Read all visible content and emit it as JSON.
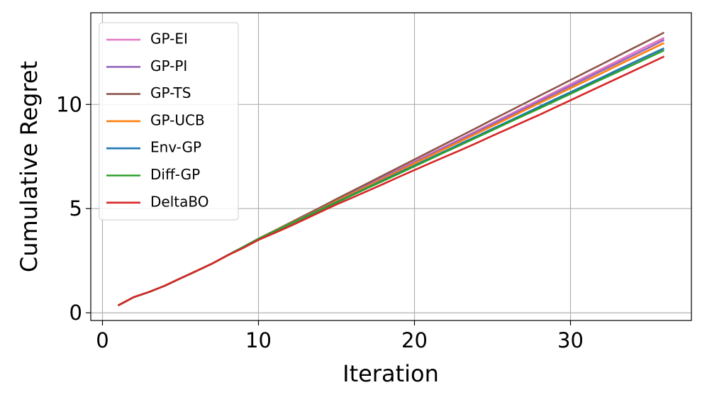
{
  "chart_data": {
    "type": "line",
    "xlabel": "Iteration",
    "ylabel": "Cumulative Regret",
    "x": [
      1,
      2,
      3,
      4,
      5,
      6,
      7,
      8,
      9,
      10,
      11,
      12,
      13,
      14,
      15,
      16,
      17,
      18,
      19,
      20,
      21,
      22,
      23,
      24,
      25,
      26,
      27,
      28,
      29,
      30,
      31,
      32,
      33,
      34,
      35,
      36
    ],
    "xlim": [
      -0.75,
      37.75
    ],
    "xticks": [
      0,
      10,
      20,
      30
    ],
    "ylim": [
      -0.37,
      14.4
    ],
    "yticks": [
      0,
      5,
      10
    ],
    "grid": true,
    "legend": "upper left",
    "series": [
      {
        "name": "GP-EI",
        "color": "#e377c2",
        "values": [
          0.35,
          0.75,
          1.0,
          1.3,
          1.65,
          2.0,
          2.35,
          2.75,
          3.15,
          3.55,
          3.92,
          4.29,
          4.66,
          5.03,
          5.4,
          5.77,
          6.14,
          6.52,
          6.89,
          7.26,
          7.63,
          8.0,
          8.37,
          8.74,
          9.11,
          9.48,
          9.85,
          10.22,
          10.6,
          10.97,
          11.34,
          11.71,
          12.08,
          12.46,
          12.83,
          13.2
        ]
      },
      {
        "name": "GP-PI",
        "color": "#9467bd",
        "values": [
          0.35,
          0.75,
          1.0,
          1.3,
          1.65,
          2.0,
          2.35,
          2.75,
          3.15,
          3.55,
          3.92,
          4.28,
          4.65,
          5.02,
          5.38,
          5.75,
          6.12,
          6.48,
          6.85,
          7.22,
          7.58,
          7.95,
          8.32,
          8.68,
          9.05,
          9.42,
          9.78,
          10.15,
          10.52,
          10.88,
          11.25,
          11.62,
          11.98,
          12.35,
          12.72,
          13.1
        ]
      },
      {
        "name": "GP-TS",
        "color": "#8c564b",
        "values": [
          0.35,
          0.75,
          1.0,
          1.3,
          1.65,
          2.0,
          2.35,
          2.75,
          3.15,
          3.55,
          3.93,
          4.31,
          4.69,
          5.07,
          5.46,
          5.84,
          6.22,
          6.6,
          6.98,
          7.36,
          7.74,
          8.12,
          8.5,
          8.88,
          9.27,
          9.65,
          10.03,
          10.41,
          10.79,
          11.17,
          11.55,
          11.93,
          12.31,
          12.69,
          13.07,
          13.45
        ]
      },
      {
        "name": "GP-UCB",
        "color": "#ff7f0e",
        "values": [
          0.35,
          0.75,
          1.0,
          1.3,
          1.65,
          2.0,
          2.35,
          2.75,
          3.15,
          3.55,
          3.91,
          4.27,
          4.63,
          4.99,
          5.36,
          5.72,
          6.08,
          6.44,
          6.8,
          7.17,
          7.53,
          7.89,
          8.25,
          8.61,
          8.97,
          9.33,
          9.7,
          10.06,
          10.42,
          10.78,
          11.14,
          11.5,
          11.87,
          12.23,
          12.59,
          12.95
        ]
      },
      {
        "name": "Env-GP",
        "color": "#1f77b4",
        "values": [
          0.35,
          0.75,
          1.0,
          1.3,
          1.65,
          2.0,
          2.35,
          2.75,
          3.15,
          3.55,
          3.9,
          4.25,
          4.61,
          4.96,
          5.31,
          5.66,
          6.01,
          6.37,
          6.72,
          7.07,
          7.42,
          7.77,
          8.13,
          8.48,
          8.83,
          9.18,
          9.53,
          9.89,
          10.24,
          10.59,
          10.94,
          11.29,
          11.65,
          12.0,
          12.35,
          12.7
        ]
      },
      {
        "name": "Diff-GP",
        "color": "#2ca02c",
        "values": [
          0.35,
          0.75,
          1.0,
          1.3,
          1.65,
          2.0,
          2.35,
          2.75,
          3.15,
          3.55,
          3.9,
          4.25,
          4.59,
          4.94,
          5.29,
          5.64,
          5.99,
          6.33,
          6.68,
          7.03,
          7.38,
          7.73,
          8.07,
          8.42,
          8.77,
          9.12,
          9.47,
          9.81,
          10.16,
          10.51,
          10.86,
          11.21,
          11.55,
          11.9,
          12.25,
          12.6
        ]
      },
      {
        "name": "DeltaBO",
        "color": "#d62728",
        "values": [
          0.35,
          0.75,
          1.0,
          1.3,
          1.65,
          2.0,
          2.35,
          2.75,
          3.1,
          3.5,
          3.82,
          4.15,
          4.5,
          4.85,
          5.2,
          5.52,
          5.85,
          6.18,
          6.52,
          6.85,
          7.18,
          7.5,
          7.82,
          8.15,
          8.5,
          8.83,
          9.17,
          9.5,
          9.85,
          10.2,
          10.55,
          10.9,
          11.25,
          11.6,
          11.95,
          12.3
        ]
      }
    ]
  }
}
